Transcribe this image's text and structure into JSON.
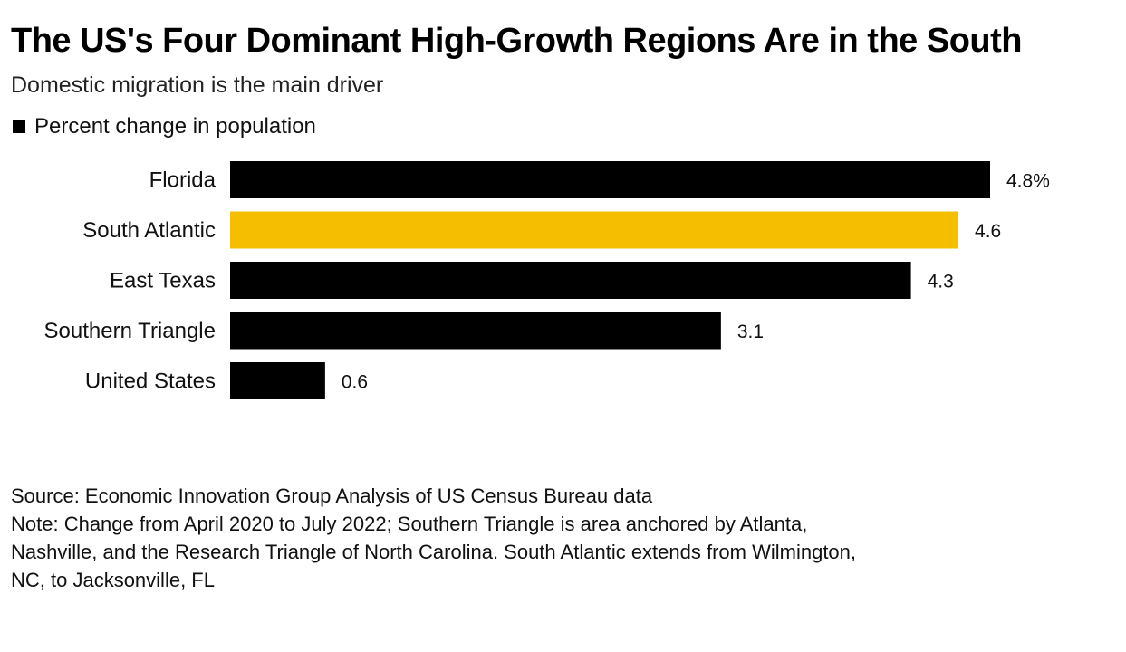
{
  "title": "The US's Four Dominant High-Growth Regions Are in the South",
  "subtitle": "Domestic migration is the main driver",
  "legend": {
    "label": "Percent change in population",
    "color": "#000000"
  },
  "chart_data": {
    "type": "bar",
    "orientation": "horizontal",
    "categories": [
      "Florida",
      "South Atlantic",
      "East Texas",
      "Southern Triangle",
      "United States"
    ],
    "series": [
      {
        "name": "Percent change in population",
        "values": [
          4.8,
          4.6,
          4.3,
          3.1,
          0.6
        ]
      }
    ],
    "value_labels": [
      "4.8%",
      "4.6",
      "4.3",
      "3.1",
      "0.6"
    ],
    "bar_colors": [
      "#000000",
      "#f5bf00",
      "#000000",
      "#000000",
      "#000000"
    ],
    "xlim": [
      0,
      4.8
    ],
    "grid": false,
    "legend_position": "top-left"
  },
  "footer": {
    "source": "Source: Economic Innovation Group Analysis of US Census Bureau data",
    "note_lines": [
      "Note: Change from April 2020 to July 2022; Southern Triangle is area anchored by Atlanta,",
      "Nashville, and the Research Triangle of North Carolina. South Atlantic extends from Wilmington,",
      "NC, to Jacksonville, FL"
    ]
  }
}
